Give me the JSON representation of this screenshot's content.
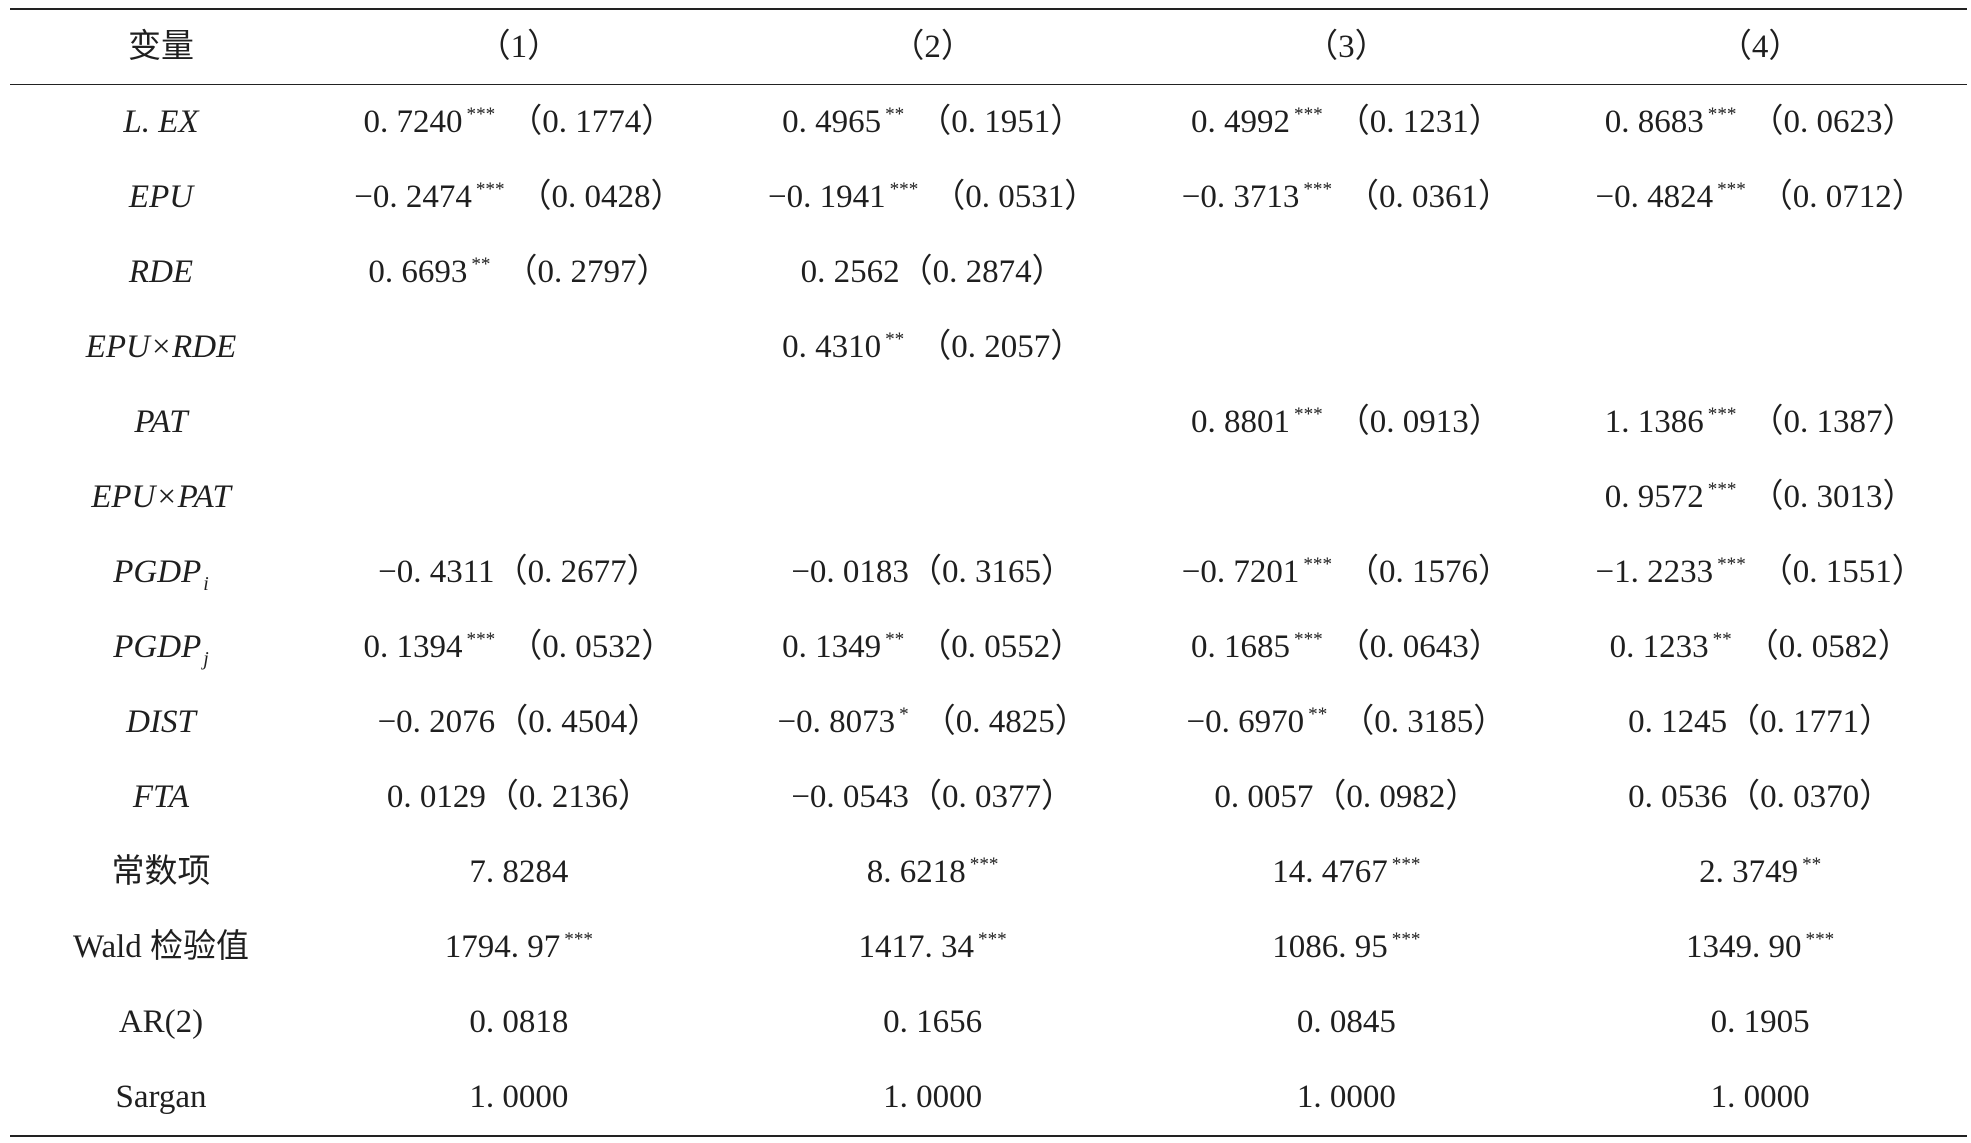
{
  "header": [
    "变量",
    "（1）",
    "（2）",
    "（3）",
    "（4）"
  ],
  "rows": [
    {
      "label": "L. EX",
      "cells": [
        {
          "coef": "0. 7240",
          "stars": "***",
          "se": "（0. 1774）"
        },
        {
          "coef": "0. 4965",
          "stars": "**",
          "se": "（0. 1951）"
        },
        {
          "coef": "0. 4992",
          "stars": "***",
          "se": "（0. 1231）"
        },
        {
          "coef": "0. 8683",
          "stars": "***",
          "se": "（0. 0623）"
        }
      ]
    },
    {
      "label": "EPU",
      "cells": [
        {
          "coef": "−0. 2474",
          "stars": "***",
          "se": "（0. 0428）"
        },
        {
          "coef": "−0. 1941",
          "stars": "***",
          "se": "（0. 0531）"
        },
        {
          "coef": "−0. 3713",
          "stars": "***",
          "se": "（0. 0361）"
        },
        {
          "coef": "−0. 4824",
          "stars": "***",
          "se": "（0. 0712）"
        }
      ]
    },
    {
      "label": "RDE",
      "cells": [
        {
          "coef": "0. 6693",
          "stars": "**",
          "se": "（0. 2797）"
        },
        {
          "coef": "0. 2562",
          "se": "（0. 2874）"
        },
        null,
        null
      ]
    },
    {
      "label": "EPU×RDE",
      "cells": [
        null,
        {
          "coef": "0. 4310",
          "stars": "**",
          "se": "（0. 2057）"
        },
        null,
        null
      ]
    },
    {
      "label": "PAT",
      "cells": [
        null,
        null,
        {
          "coef": "0. 8801",
          "stars": "***",
          "se": "（0. 0913）"
        },
        {
          "coef": "1. 1386",
          "stars": "***",
          "se": "（0. 1387）"
        }
      ]
    },
    {
      "label": "EPU×PAT",
      "cells": [
        null,
        null,
        null,
        {
          "coef": "0. 9572",
          "stars": "***",
          "se": "（0. 3013）"
        }
      ]
    },
    {
      "label": "PGDP",
      "sub": "i",
      "cells": [
        {
          "coef": "−0. 4311",
          "se": "（0. 2677）"
        },
        {
          "coef": "−0. 0183",
          "se": "（0. 3165）"
        },
        {
          "coef": "−0. 7201",
          "stars": "***",
          "se": "（0. 1576）"
        },
        {
          "coef": "−1. 2233",
          "stars": "***",
          "se": "（0. 1551）"
        }
      ]
    },
    {
      "label": "PGDP",
      "sub": "j",
      "cells": [
        {
          "coef": "0. 1394",
          "stars": "***",
          "se": "（0. 0532）"
        },
        {
          "coef": "0. 1349",
          "stars": "**",
          "se": "（0. 0552）"
        },
        {
          "coef": "0. 1685",
          "stars": "***",
          "se": "（0. 0643）"
        },
        {
          "coef": "0. 1233",
          "stars": "**",
          "se": "（0. 0582）"
        }
      ]
    },
    {
      "label": "DIST",
      "cells": [
        {
          "coef": "−0. 2076",
          "se": "（0. 4504）"
        },
        {
          "coef": "−0. 8073",
          "stars": "*",
          "se": "（0. 4825）"
        },
        {
          "coef": "−0. 6970",
          "stars": "**",
          "se": "（0. 3185）"
        },
        {
          "coef": "0. 1245",
          "se": "（0. 1771）"
        }
      ]
    },
    {
      "label": "FTA",
      "cells": [
        {
          "coef": "0. 0129",
          "se": "（0. 2136）"
        },
        {
          "coef": "−0. 0543",
          "se": "（0. 0377）"
        },
        {
          "coef": "0. 0057",
          "se": "（0. 0982）"
        },
        {
          "coef": "0. 0536",
          "se": "（0. 0370）"
        }
      ]
    },
    {
      "label": "常数项",
      "cells": [
        {
          "coef": "7. 8284"
        },
        {
          "coef": "8. 6218",
          "stars": "***"
        },
        {
          "coef": "14. 4767",
          "stars": "***"
        },
        {
          "coef": "2. 3749",
          "stars": "**"
        }
      ]
    },
    {
      "label": "Wald 检验值",
      "cells": [
        {
          "coef": "1794. 97",
          "stars": "***"
        },
        {
          "coef": "1417. 34",
          "stars": "***"
        },
        {
          "coef": "1086. 95",
          "stars": "***"
        },
        {
          "coef": "1349. 90",
          "stars": "***"
        }
      ]
    },
    {
      "label": "AR(2)",
      "cells": [
        {
          "coef": "0. 0818"
        },
        {
          "coef": "0. 1656"
        },
        {
          "coef": "0. 0845"
        },
        {
          "coef": "0. 1905"
        }
      ]
    },
    {
      "label": "Sargan",
      "cells": [
        {
          "coef": "1. 0000"
        },
        {
          "coef": "1. 0000"
        },
        {
          "coef": "1. 0000"
        },
        {
          "coef": "1. 0000"
        }
      ]
    }
  ]
}
